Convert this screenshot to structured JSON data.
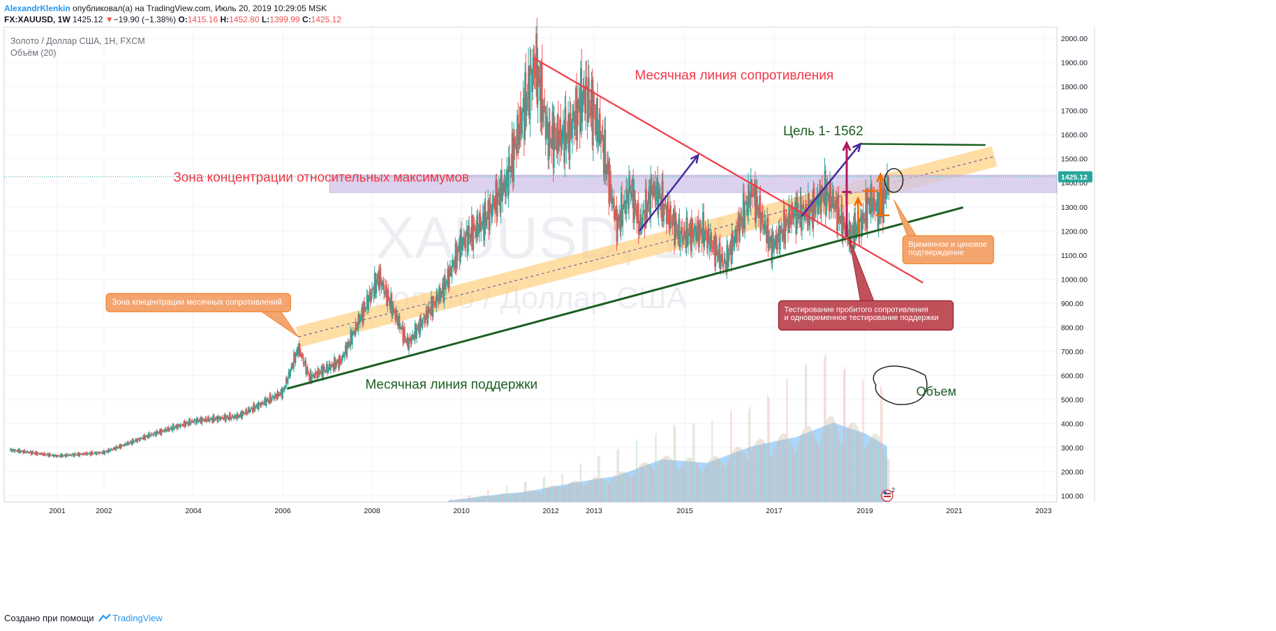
{
  "header": {
    "user": "AlexandrKlenkin",
    "published": "опубликовал(а) на TradingView.com, Июль 20, 2019 10:29:05 MSK",
    "symbol": "FX:XAUUSD, 1W",
    "price": "1425.12",
    "change_arrow": "▼",
    "change": "−19.90 (−1.38%)",
    "o_label": "O:",
    "o_value": "1415.16",
    "h_label": "H:",
    "h_value": "1452.80",
    "l_label": "L:",
    "l_value": "1399.99",
    "c_label": "C:",
    "c_value": "1425.12"
  },
  "legend": {
    "instrument": "Золото / Доллар США, 1Н, FXCM",
    "volume": "Объём (20)"
  },
  "watermark": {
    "symbol": "XAUUSD, 1Н",
    "name": "Золото / Доллар США"
  },
  "footer": {
    "created": "Создано при помощи",
    "brand": "TradingView"
  },
  "colors": {
    "up": "#26a69a",
    "down": "#ef5350",
    "volume": "#90caf9",
    "resistance": "#f23645",
    "support": "#1b5e20",
    "zone_fill": "#d1c4e9",
    "channel": "#ffd180",
    "arrow_purple": "#4527a0",
    "arrow_magenta": "#b0185c",
    "arrow_orange": "#ef6c00",
    "callout_orange": "#f4a46e",
    "callout_red": "#c0505a"
  },
  "chart_data": {
    "type": "candlestick",
    "title": "Золото / Доллар США, 1Н, FXCM",
    "y_axis_ticks": [
      "2000.00",
      "1900.00",
      "1800.00",
      "1700.00",
      "1600.00",
      "1500.00",
      "1400.00",
      "1300.00",
      "1200.00",
      "1100.00",
      "1000.00",
      "900.00",
      "800.00",
      "700.00",
      "600.00",
      "500.00",
      "400.00",
      "300.00",
      "200.00",
      "100.00"
    ],
    "x_axis_ticks": [
      "2001",
      "2002",
      "2004",
      "2006",
      "2008",
      "2010",
      "2012",
      "2013",
      "2015",
      "2017",
      "2019",
      "2021",
      "2023"
    ],
    "ylim": [
      60,
      2060
    ],
    "last_price_label": "1425.12",
    "price_path": [
      {
        "x": 2000.0,
        "y": 290
      },
      {
        "x": 2001.0,
        "y": 265
      },
      {
        "x": 2002.0,
        "y": 280
      },
      {
        "x": 2003.0,
        "y": 350
      },
      {
        "x": 2004.0,
        "y": 410
      },
      {
        "x": 2005.0,
        "y": 430
      },
      {
        "x": 2006.0,
        "y": 530
      },
      {
        "x": 2006.35,
        "y": 715
      },
      {
        "x": 2006.6,
        "y": 590
      },
      {
        "x": 2007.3,
        "y": 660
      },
      {
        "x": 2008.15,
        "y": 1010
      },
      {
        "x": 2008.8,
        "y": 730
      },
      {
        "x": 2009.6,
        "y": 960
      },
      {
        "x": 2010.0,
        "y": 1150
      },
      {
        "x": 2010.5,
        "y": 1240
      },
      {
        "x": 2011.0,
        "y": 1400
      },
      {
        "x": 2011.65,
        "y": 1900
      },
      {
        "x": 2011.95,
        "y": 1580
      },
      {
        "x": 2012.4,
        "y": 1600
      },
      {
        "x": 2012.8,
        "y": 1780
      },
      {
        "x": 2013.15,
        "y": 1600
      },
      {
        "x": 2013.5,
        "y": 1220
      },
      {
        "x": 2013.8,
        "y": 1380
      },
      {
        "x": 2014.0,
        "y": 1220
      },
      {
        "x": 2014.3,
        "y": 1380
      },
      {
        "x": 2014.9,
        "y": 1180
      },
      {
        "x": 2015.4,
        "y": 1200
      },
      {
        "x": 2015.9,
        "y": 1060
      },
      {
        "x": 2016.5,
        "y": 1370
      },
      {
        "x": 2016.95,
        "y": 1130
      },
      {
        "x": 2017.4,
        "y": 1270
      },
      {
        "x": 2017.8,
        "y": 1280
      },
      {
        "x": 2018.1,
        "y": 1360
      },
      {
        "x": 2018.3,
        "y": 1320
      },
      {
        "x": 2018.65,
        "y": 1175
      },
      {
        "x": 2018.95,
        "y": 1240
      },
      {
        "x": 2019.1,
        "y": 1330
      },
      {
        "x": 2019.35,
        "y": 1280
      },
      {
        "x": 2019.55,
        "y": 1425
      }
    ],
    "volume_path": [
      {
        "x": 2009.7,
        "y": 0.01
      },
      {
        "x": 2010.5,
        "y": 0.05
      },
      {
        "x": 2011.5,
        "y": 0.09
      },
      {
        "x": 2012.5,
        "y": 0.16
      },
      {
        "x": 2013.5,
        "y": 0.22
      },
      {
        "x": 2014.5,
        "y": 0.36
      },
      {
        "x": 2015.5,
        "y": 0.33
      },
      {
        "x": 2016.5,
        "y": 0.47
      },
      {
        "x": 2017.5,
        "y": 0.55
      },
      {
        "x": 2018.3,
        "y": 0.67
      },
      {
        "x": 2019.0,
        "y": 0.58
      },
      {
        "x": 2019.5,
        "y": 0.47
      }
    ],
    "annotations": {
      "resistance_label": "Месячная линия сопротивления",
      "support_label": "Месячная линия поддержки",
      "zone_label": "Зона концентрации относительных максимумов",
      "target_label": "Цель 1- 1562",
      "volume_label": "Объем",
      "callout_monthly_zone": "Зона концентрации месячных сопротивлений",
      "callout_time_price_1": "Временное и ценовое",
      "callout_time_price_2": "подтверждение",
      "callout_test_1": "Тестирование пробитого сопротивления",
      "callout_test_2": "и одновременное тестирование поддержки",
      "badge_count": "2"
    }
  }
}
